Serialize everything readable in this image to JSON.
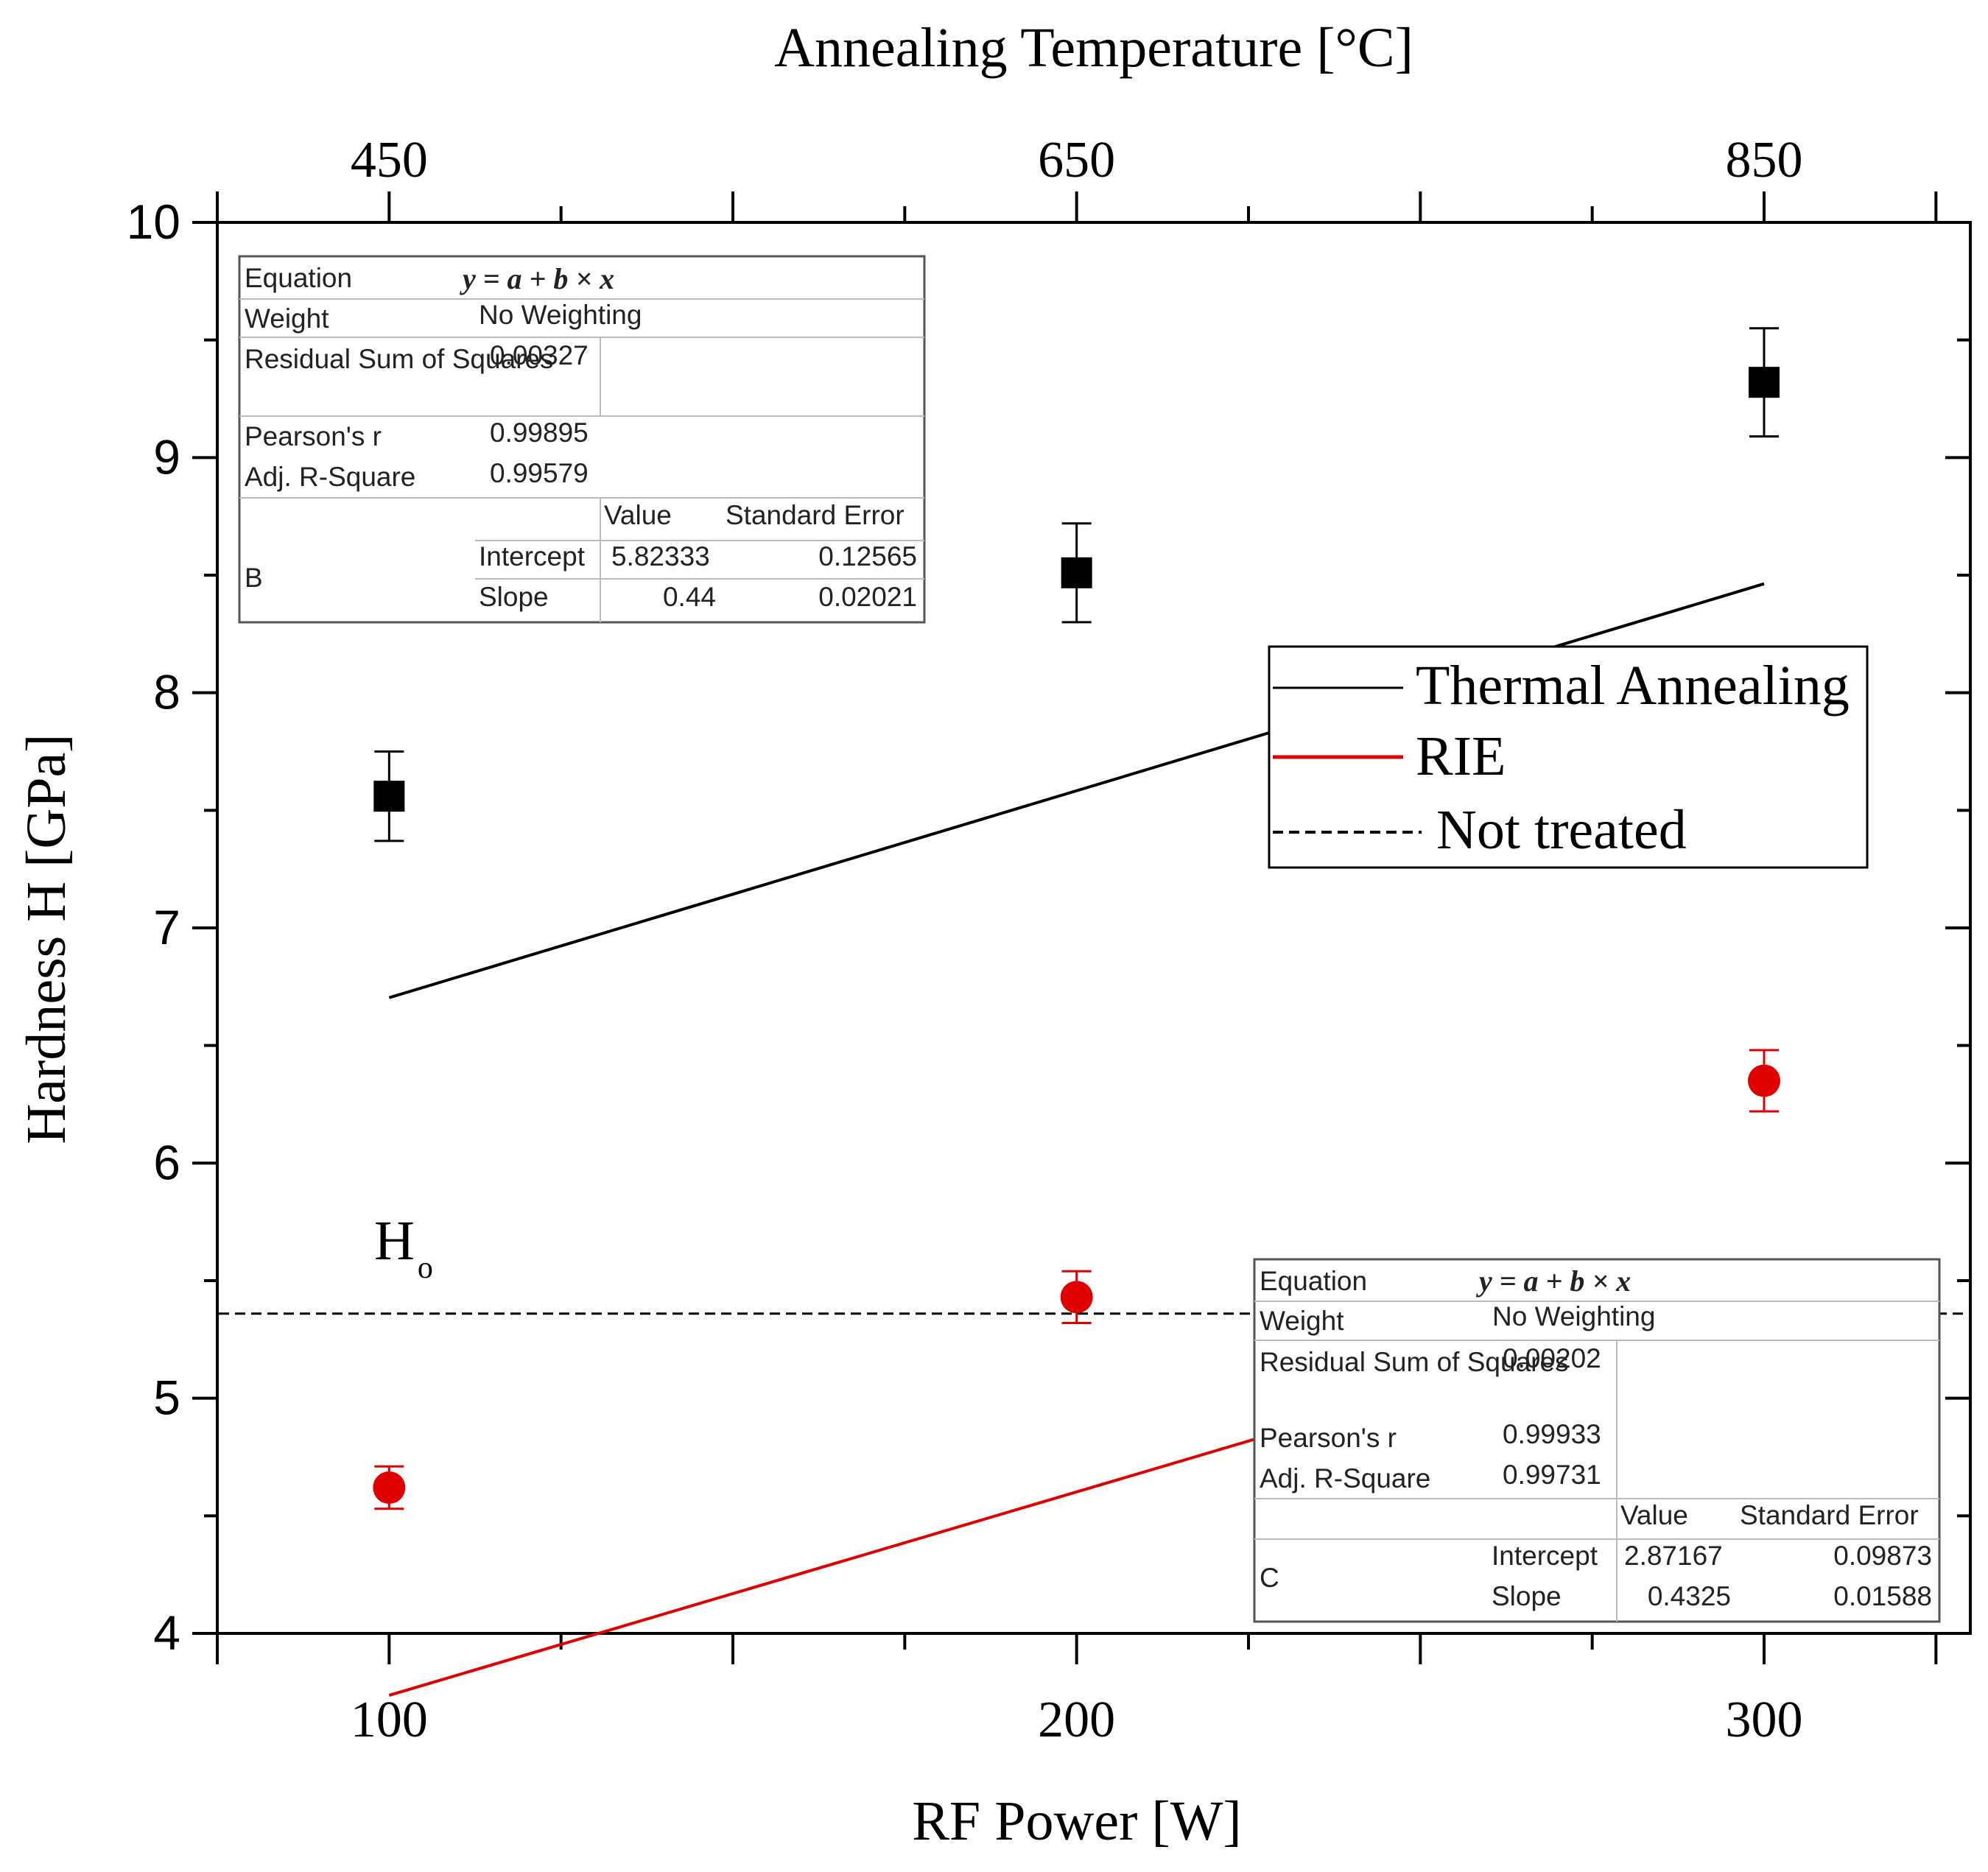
{
  "chart_data": {
    "type": "line",
    "xlabel": "RF Power [W]",
    "x2label": "Annealing Temperature [°C]",
    "ylabel": "Hardness H [GPa]",
    "xlim": [
      75,
      330
    ],
    "ylim": [
      4,
      10
    ],
    "x_ticks": [
      100,
      200,
      300
    ],
    "x2_ticks": [
      {
        "x": 100,
        "label": "450"
      },
      {
        "x": 200,
        "label": "650"
      },
      {
        "x": 300,
        "label": "850"
      }
    ],
    "y_ticks": [
      4,
      5,
      6,
      7,
      8,
      9,
      10
    ],
    "grid": false,
    "legend_position": "right-middle",
    "series": [
      {
        "name": "Thermal Annealing",
        "color": "#000000",
        "marker": "square",
        "x": [
          100,
          200,
          300
        ],
        "y": [
          7.56,
          8.51,
          9.32
        ],
        "yerr": [
          0.19,
          0.21,
          0.23
        ],
        "fit": {
          "intercept": 5.82333,
          "slope": 0.44
        }
      },
      {
        "name": "RIE",
        "color": "#e00000",
        "marker": "circle",
        "x": [
          100,
          200,
          300
        ],
        "y": [
          4.62,
          5.43,
          6.35
        ],
        "yerr": [
          0.09,
          0.11,
          0.13
        ],
        "fit": {
          "intercept": 2.87167,
          "slope": 0.4325
        }
      },
      {
        "name": "Not treated",
        "color": "#000000",
        "style": "dashed",
        "y": 5.36
      }
    ],
    "annotation": {
      "text": "H",
      "subscript": "o"
    },
    "fit_tables": [
      {
        "equation_label": "Equation",
        "equation": "y = a + b × x",
        "weight_label": "Weight",
        "weight": "No Weighting",
        "rss_label": "Residual Sum of Squares",
        "rss": "0.00327",
        "pearson_label": "Pearson's r",
        "pearson": "0.99895",
        "adjr_label": "Adj. R-Square",
        "adjr": "0.99579",
        "value_header": "Value",
        "stderr_header": "Standard Error",
        "dataset": "B",
        "intercept_label": "Intercept",
        "intercept_value": "5.82333",
        "intercept_err": "0.12565",
        "slope_label": "Slope",
        "slope_value": "0.44",
        "slope_err": "0.02021"
      },
      {
        "equation_label": "Equation",
        "equation": "y = a + b × x",
        "weight_label": "Weight",
        "weight": "No Weighting",
        "rss_label": "Residual Sum of Squares",
        "rss": "0.00202",
        "pearson_label": "Pearson's r",
        "pearson": "0.99933",
        "adjr_label": "Adj. R-Square",
        "adjr": "0.99731",
        "value_header": "Value",
        "stderr_header": "Standard Error",
        "dataset": "C",
        "intercept_label": "Intercept",
        "intercept_value": "2.87167",
        "intercept_err": "0.09873",
        "slope_label": "Slope",
        "slope_value": "0.4325",
        "slope_err": "0.01588"
      }
    ]
  }
}
